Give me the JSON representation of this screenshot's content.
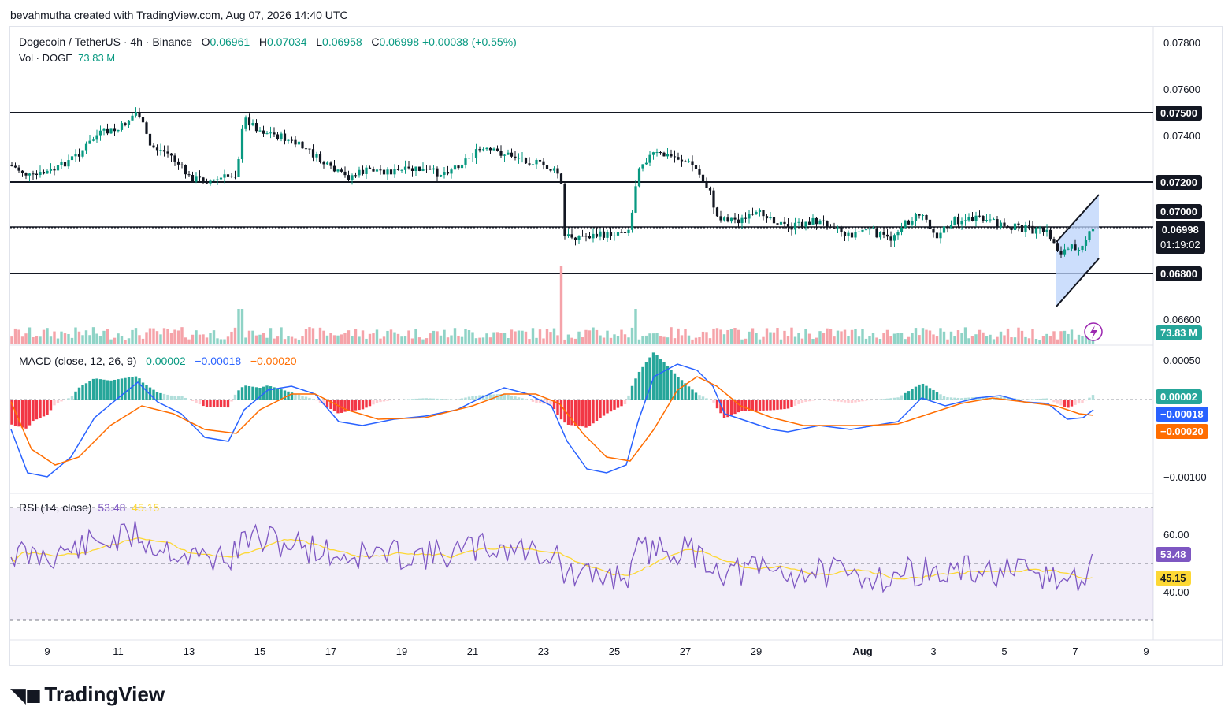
{
  "header": {
    "attribution": "bevahmutha created with TradingView.com, Aug 07, 2026 14:40 UTC"
  },
  "symbol": {
    "name": "Dogecoin / TetherUS · 4h · Binance",
    "o_label": "O",
    "o": "0.06961",
    "h_label": "H",
    "h": "0.07034",
    "l_label": "L",
    "l": "0.06958",
    "c_label": "C",
    "c": "0.06998",
    "change": "+0.00038 (+0.55%)"
  },
  "volume": {
    "label": "Vol · DOGE",
    "value": "73.83 M",
    "tag": "73.83 M"
  },
  "price_axis": [
    "0.07800",
    "0.07600",
    "0.07400",
    "0.06600"
  ],
  "levels": {
    "l1": "0.07500",
    "l2": "0.07200",
    "l3": "0.07000",
    "l4": "0.06800"
  },
  "last_price": {
    "value": "0.06998",
    "countdown": "01:19:02"
  },
  "macd": {
    "label": "MACD (close, 12, 26, 9)",
    "hist": "0.00002",
    "macd": "−0.00018",
    "signal": "−0.00020",
    "axis": [
      "0.00050",
      "−0.00100"
    ],
    "tag_hist": "0.00002",
    "tag_macd": "−0.00018",
    "tag_signal": "−0.00020"
  },
  "rsi": {
    "label": "RSI (14, close)",
    "value": "53.48",
    "ma": "45.15",
    "axis": [
      "60.00",
      "40.00"
    ],
    "tag_value": "53.48",
    "tag_ma": "45.15"
  },
  "time_axis": [
    "9",
    "11",
    "13",
    "15",
    "17",
    "19",
    "21",
    "23",
    "25",
    "27",
    "29",
    "Aug",
    "3",
    "5",
    "7",
    "9"
  ],
  "logo": "TradingView",
  "colors": {
    "up": "#089981",
    "down": "#f23645",
    "macd": "#2962ff",
    "signal": "#ff6d00",
    "rsi": "#7e57c2",
    "rsi_ma": "#fdd835"
  }
}
